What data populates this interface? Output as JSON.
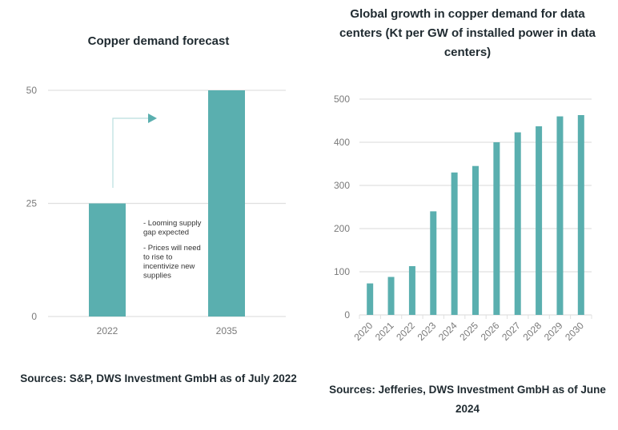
{
  "colors": {
    "bar": "#5aafaf",
    "grid": "#e0e0e0",
    "arrow": "#b9dede",
    "arrow_head": "#5aafaf",
    "text": "#1f2a30",
    "tick": "#7a7a7a"
  },
  "chart_data": [
    {
      "type": "bar",
      "title": "Copper demand forecast",
      "categories": [
        "2022",
        "2035"
      ],
      "values": [
        25,
        50
      ],
      "ylim": [
        0,
        50
      ],
      "yticks": [
        0,
        25,
        50
      ],
      "xlabel": "",
      "ylabel": "",
      "grid": true,
      "annotations": {
        "arrow": "from 2022 bar up and right toward 2035 bar",
        "note_lines": [
          "- Looming supply",
          "gap expected",
          "",
          "- Prices will need",
          "to rise to",
          "incentivize new",
          "supplies"
        ]
      },
      "source": "Sources: S&P, DWS Investment GmbH as of July 2022"
    },
    {
      "type": "bar",
      "title_lines": [
        "Global growth in copper demand for data",
        "centers (Kt per GW of installed power in data",
        "centers)"
      ],
      "categories": [
        "2020",
        "2021",
        "2022",
        "2023",
        "2024",
        "2025",
        "2026",
        "2027",
        "2028",
        "2029",
        "2030"
      ],
      "values": [
        73,
        88,
        113,
        240,
        330,
        345,
        400,
        423,
        437,
        460,
        463
      ],
      "ylim": [
        0,
        500
      ],
      "yticks": [
        0,
        100,
        200,
        300,
        400,
        500
      ],
      "xlabel": "",
      "ylabel": "",
      "grid": true,
      "source_lines": [
        "Sources: Jefferies, DWS Investment GmbH as of June",
        "2024"
      ]
    }
  ]
}
